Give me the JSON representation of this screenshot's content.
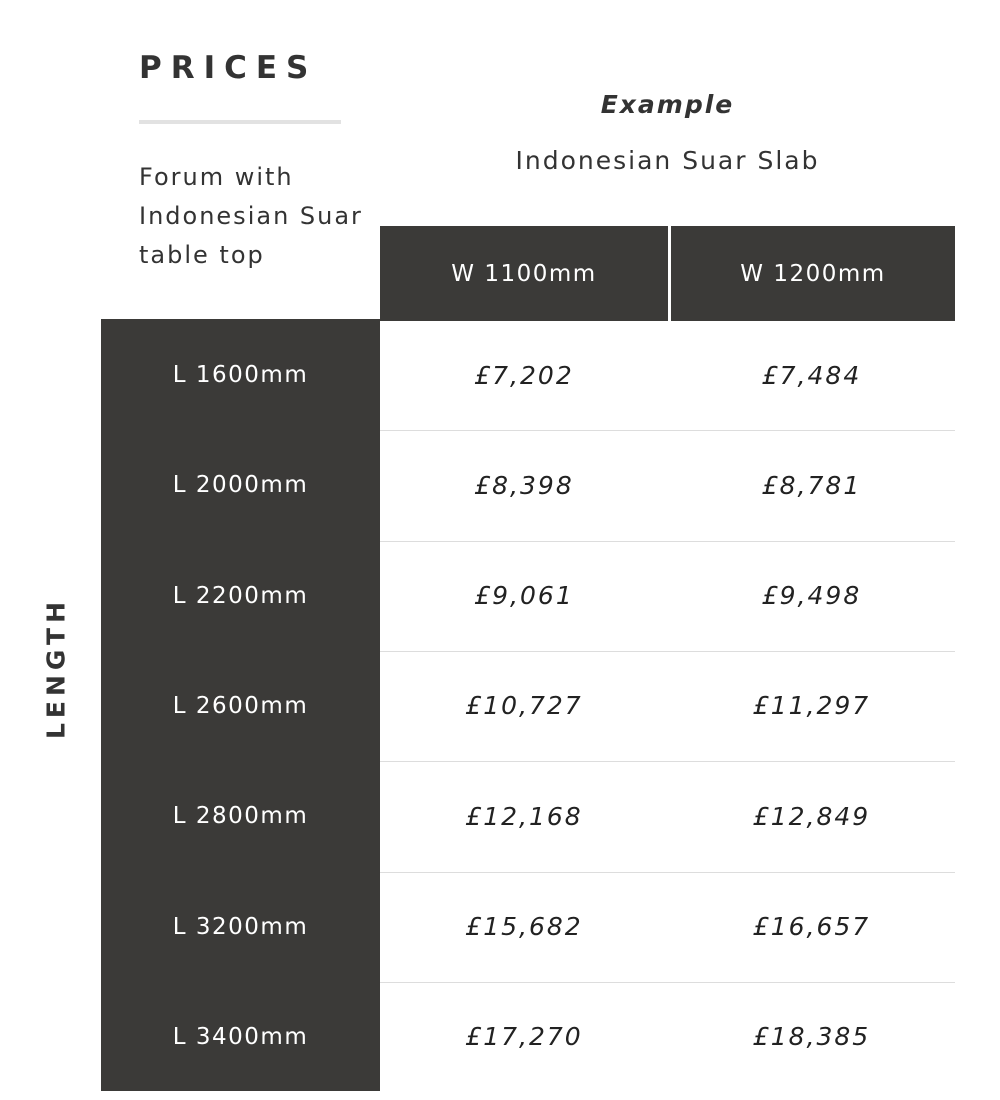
{
  "title": "PRICES",
  "description": "Forum with Indonesian Suar table top",
  "example_label": "Example",
  "material": "Indonesian Suar Slab",
  "axis_label": "LENGTH",
  "columns": [
    "W 1100mm",
    "W 1200mm"
  ],
  "rows": [
    {
      "length": "L 1600mm",
      "prices": [
        "£7,202",
        "£7,484"
      ]
    },
    {
      "length": "L 2000mm",
      "prices": [
        "£8,398",
        "£8,781"
      ]
    },
    {
      "length": "L 2200mm",
      "prices": [
        "£9,061",
        "£9,498"
      ]
    },
    {
      "length": "L 2600mm",
      "prices": [
        "£10,727",
        "£11,297"
      ]
    },
    {
      "length": "L 2800mm",
      "prices": [
        "£12,168",
        "£12,849"
      ]
    },
    {
      "length": "L 3200mm",
      "prices": [
        "£15,682",
        "£16,657"
      ]
    },
    {
      "length": "L 3400mm",
      "prices": [
        "£17,270",
        "£18,385"
      ]
    }
  ],
  "colors": {
    "header_bg": "#3b3a38",
    "text": "#333333"
  }
}
